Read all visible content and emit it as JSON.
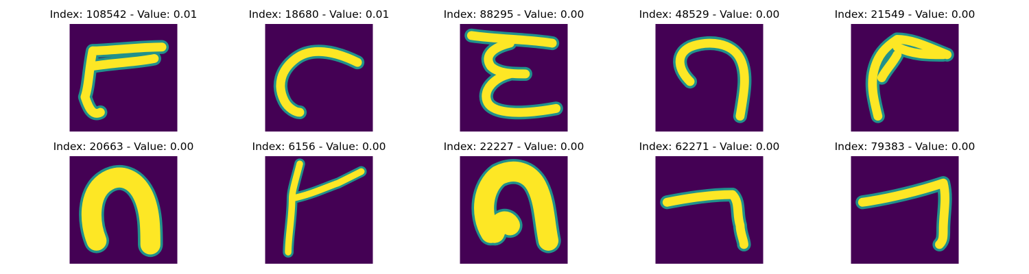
{
  "colors": {
    "background": "#440154",
    "edge": "#21918c",
    "stroke": "#fde725",
    "page": "#ffffff"
  },
  "panels": [
    {
      "title": "Index: 108542 - Value: 0.01",
      "glyph": "horizontal-bar-with-curved-left-stem"
    },
    {
      "title": "Index: 18680 - Value: 0.01",
      "glyph": "curved-hook-with-tail"
    },
    {
      "title": "Index: 88295 - Value: 0.00",
      "glyph": "epsilon-shape"
    },
    {
      "title": "Index: 48529 - Value: 0.00",
      "glyph": "inverted-u-hook"
    },
    {
      "title": "Index: 21549 - Value: 0.00",
      "glyph": "angled-hook-with-stem"
    },
    {
      "title": "Index: 20663 - Value: 0.00",
      "glyph": "thick-arch"
    },
    {
      "title": "Index: 6156 - Value: 0.00",
      "glyph": "forked-y-stroke"
    },
    {
      "title": "Index: 22227 - Value: 0.00",
      "glyph": "thick-arch-narrow"
    },
    {
      "title": "Index: 62271 - Value: 0.00",
      "glyph": "seven-shape"
    },
    {
      "title": "Index: 79383 - Value: 0.00",
      "glyph": "seven-shape-long"
    }
  ]
}
